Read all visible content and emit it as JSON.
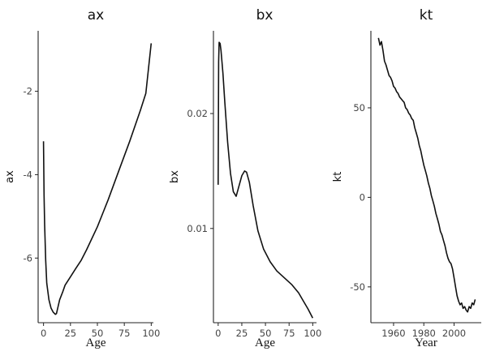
{
  "chart_data": [
    {
      "type": "line",
      "title": "ax",
      "xlabel": "Age",
      "ylabel": "ax",
      "xlim": [
        -5,
        102
      ],
      "ylim": [
        -7.55,
        -0.55
      ],
      "x_ticks": [
        0,
        25,
        50,
        75,
        100
      ],
      "x_tick_labels": [
        "0",
        "25",
        "50",
        "75",
        "100"
      ],
      "y_ticks": [
        -2,
        -4,
        -6
      ],
      "y_tick_labels": [
        "-2",
        "-4",
        "-6"
      ],
      "grid": false,
      "series": [
        {
          "x": [
            0,
            0.5,
            1,
            2,
            3,
            5,
            7,
            9,
            11,
            12,
            13,
            15,
            18,
            20,
            25,
            30,
            35,
            40,
            50,
            60,
            70,
            80,
            90,
            95,
            100
          ],
          "values": [
            -3.2,
            -4.5,
            -5.2,
            -6.05,
            -6.6,
            -7.0,
            -7.2,
            -7.3,
            -7.35,
            -7.33,
            -7.22,
            -7.0,
            -6.8,
            -6.65,
            -6.45,
            -6.25,
            -6.05,
            -5.8,
            -5.25,
            -4.6,
            -3.9,
            -3.2,
            -2.45,
            -2.05,
            -0.85
          ]
        }
      ]
    },
    {
      "type": "line",
      "title": "bx",
      "xlabel": "Age",
      "ylabel": "bx",
      "xlim": [
        -5,
        104
      ],
      "ylim": [
        0.0018,
        0.0272
      ],
      "x_ticks": [
        0,
        25,
        50,
        75,
        100
      ],
      "x_tick_labels": [
        "0",
        "25",
        "50",
        "75",
        "100"
      ],
      "y_ticks": [
        0.01,
        0.02
      ],
      "y_tick_labels": [
        "0.01",
        "0.02"
      ],
      "grid": false,
      "series": [
        {
          "x": [
            0,
            0.5,
            1,
            2,
            3,
            5,
            7,
            10,
            13,
            16,
            19,
            22,
            25,
            28,
            30,
            33,
            37,
            42,
            48,
            55,
            62,
            70,
            78,
            85,
            90,
            95,
            100
          ],
          "values": [
            0.0138,
            0.0245,
            0.0262,
            0.0261,
            0.0255,
            0.0235,
            0.021,
            0.0175,
            0.0148,
            0.0132,
            0.0128,
            0.0137,
            0.0146,
            0.015,
            0.0149,
            0.014,
            0.012,
            0.0098,
            0.0082,
            0.0071,
            0.0063,
            0.0057,
            0.0051,
            0.0044,
            0.0037,
            0.003,
            0.0022
          ]
        }
      ]
    },
    {
      "type": "line",
      "title": "kt",
      "xlabel": "Year",
      "ylabel": "kt",
      "xlim": [
        1945,
        2018
      ],
      "ylim": [
        -70,
        93
      ],
      "x_ticks": [
        1960,
        1980,
        2000
      ],
      "x_tick_labels": [
        "1960",
        "1980",
        "2000"
      ],
      "y_ticks": [
        -50,
        0,
        50
      ],
      "y_tick_labels": [
        "-50",
        "0",
        "50"
      ],
      "grid": false,
      "series": [
        {
          "x": [
            1950,
            1951,
            1952,
            1953,
            1954,
            1955,
            1956,
            1957,
            1958,
            1959,
            1960,
            1961,
            1962,
            1963,
            1964,
            1965,
            1966,
            1967,
            1968,
            1969,
            1970,
            1971,
            1972,
            1973,
            1974,
            1975,
            1976,
            1977,
            1978,
            1979,
            1980,
            1981,
            1982,
            1983,
            1984,
            1985,
            1986,
            1987,
            1988,
            1989,
            1990,
            1991,
            1992,
            1993,
            1994,
            1995,
            1996,
            1997,
            1998,
            1999,
            2000,
            2001,
            2002,
            2003,
            2004,
            2005,
            2006,
            2007,
            2008,
            2009,
            2010,
            2011,
            2012,
            2013,
            2014
          ],
          "values": [
            89,
            85,
            87,
            82,
            76,
            74,
            71,
            68,
            67,
            65,
            62,
            61,
            59,
            58,
            56,
            55,
            54,
            53,
            50,
            49,
            47,
            46,
            44,
            43,
            39,
            36,
            33,
            29,
            26,
            22,
            18,
            15,
            12,
            8,
            5,
            1,
            -2,
            -5,
            -9,
            -12,
            -15,
            -19,
            -21,
            -24,
            -27,
            -31,
            -34,
            -36,
            -37,
            -40,
            -45,
            -50,
            -55,
            -58,
            -60,
            -59,
            -62,
            -61,
            -63,
            -64,
            -61,
            -62,
            -59,
            -60,
            -57
          ]
        }
      ]
    }
  ]
}
